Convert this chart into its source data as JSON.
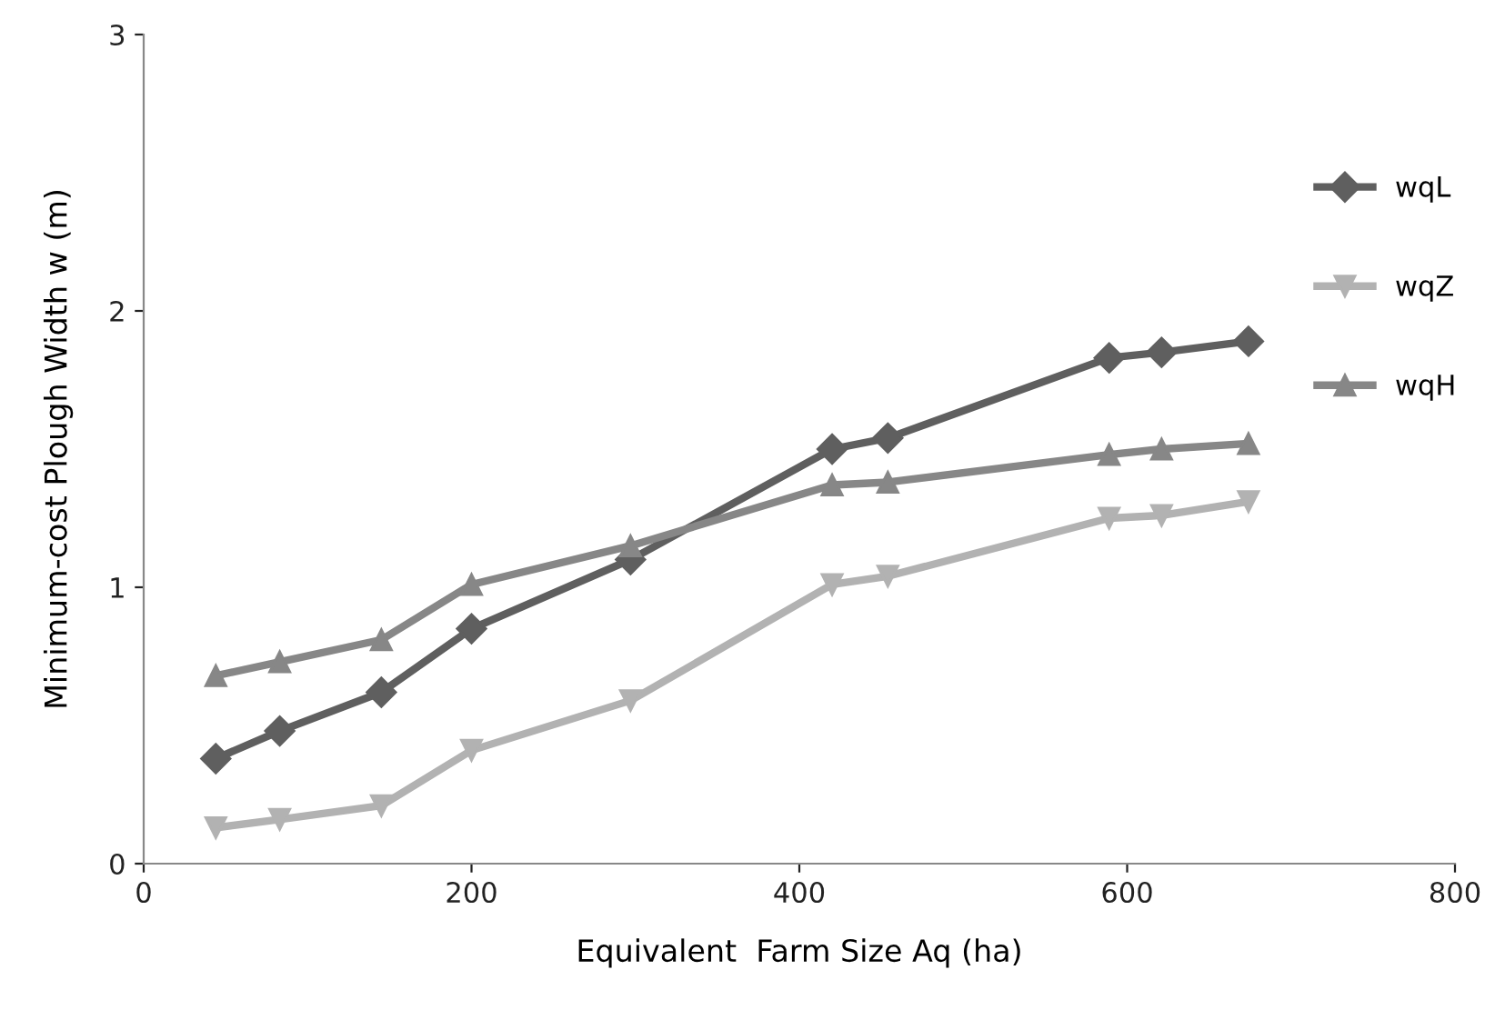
{
  "chart_data": {
    "type": "line",
    "xlabel": "Equivalent  Farm Size Aq (ha)",
    "ylabel": "Minimum-cost Plough Width w (m)",
    "x": [
      44,
      83,
      145,
      200,
      297,
      420,
      454,
      589,
      621,
      674
    ],
    "series": [
      {
        "name": "wqL",
        "color": "#5f5f5f",
        "marker": "diamond",
        "values": [
          0.38,
          0.48,
          0.62,
          0.85,
          1.1,
          1.5,
          1.54,
          1.83,
          1.85,
          1.89
        ]
      },
      {
        "name": "wqZ",
        "color": "#b2b2b2",
        "marker": "triangle_down",
        "values": [
          0.13,
          0.16,
          0.21,
          0.41,
          0.59,
          1.01,
          1.04,
          1.25,
          1.26,
          1.31
        ]
      },
      {
        "name": "wqH",
        "color": "#878787",
        "marker": "triangle",
        "values": [
          0.68,
          0.73,
          0.81,
          1.01,
          1.15,
          1.37,
          1.38,
          1.48,
          1.5,
          1.52
        ]
      }
    ],
    "xlim": [
      0,
      800
    ],
    "xticks": [
      0,
      200,
      400,
      600,
      800
    ],
    "ylim": [
      0,
      3
    ],
    "yticks": [
      0,
      1,
      2,
      3
    ],
    "grid": false,
    "legend": "top right"
  }
}
